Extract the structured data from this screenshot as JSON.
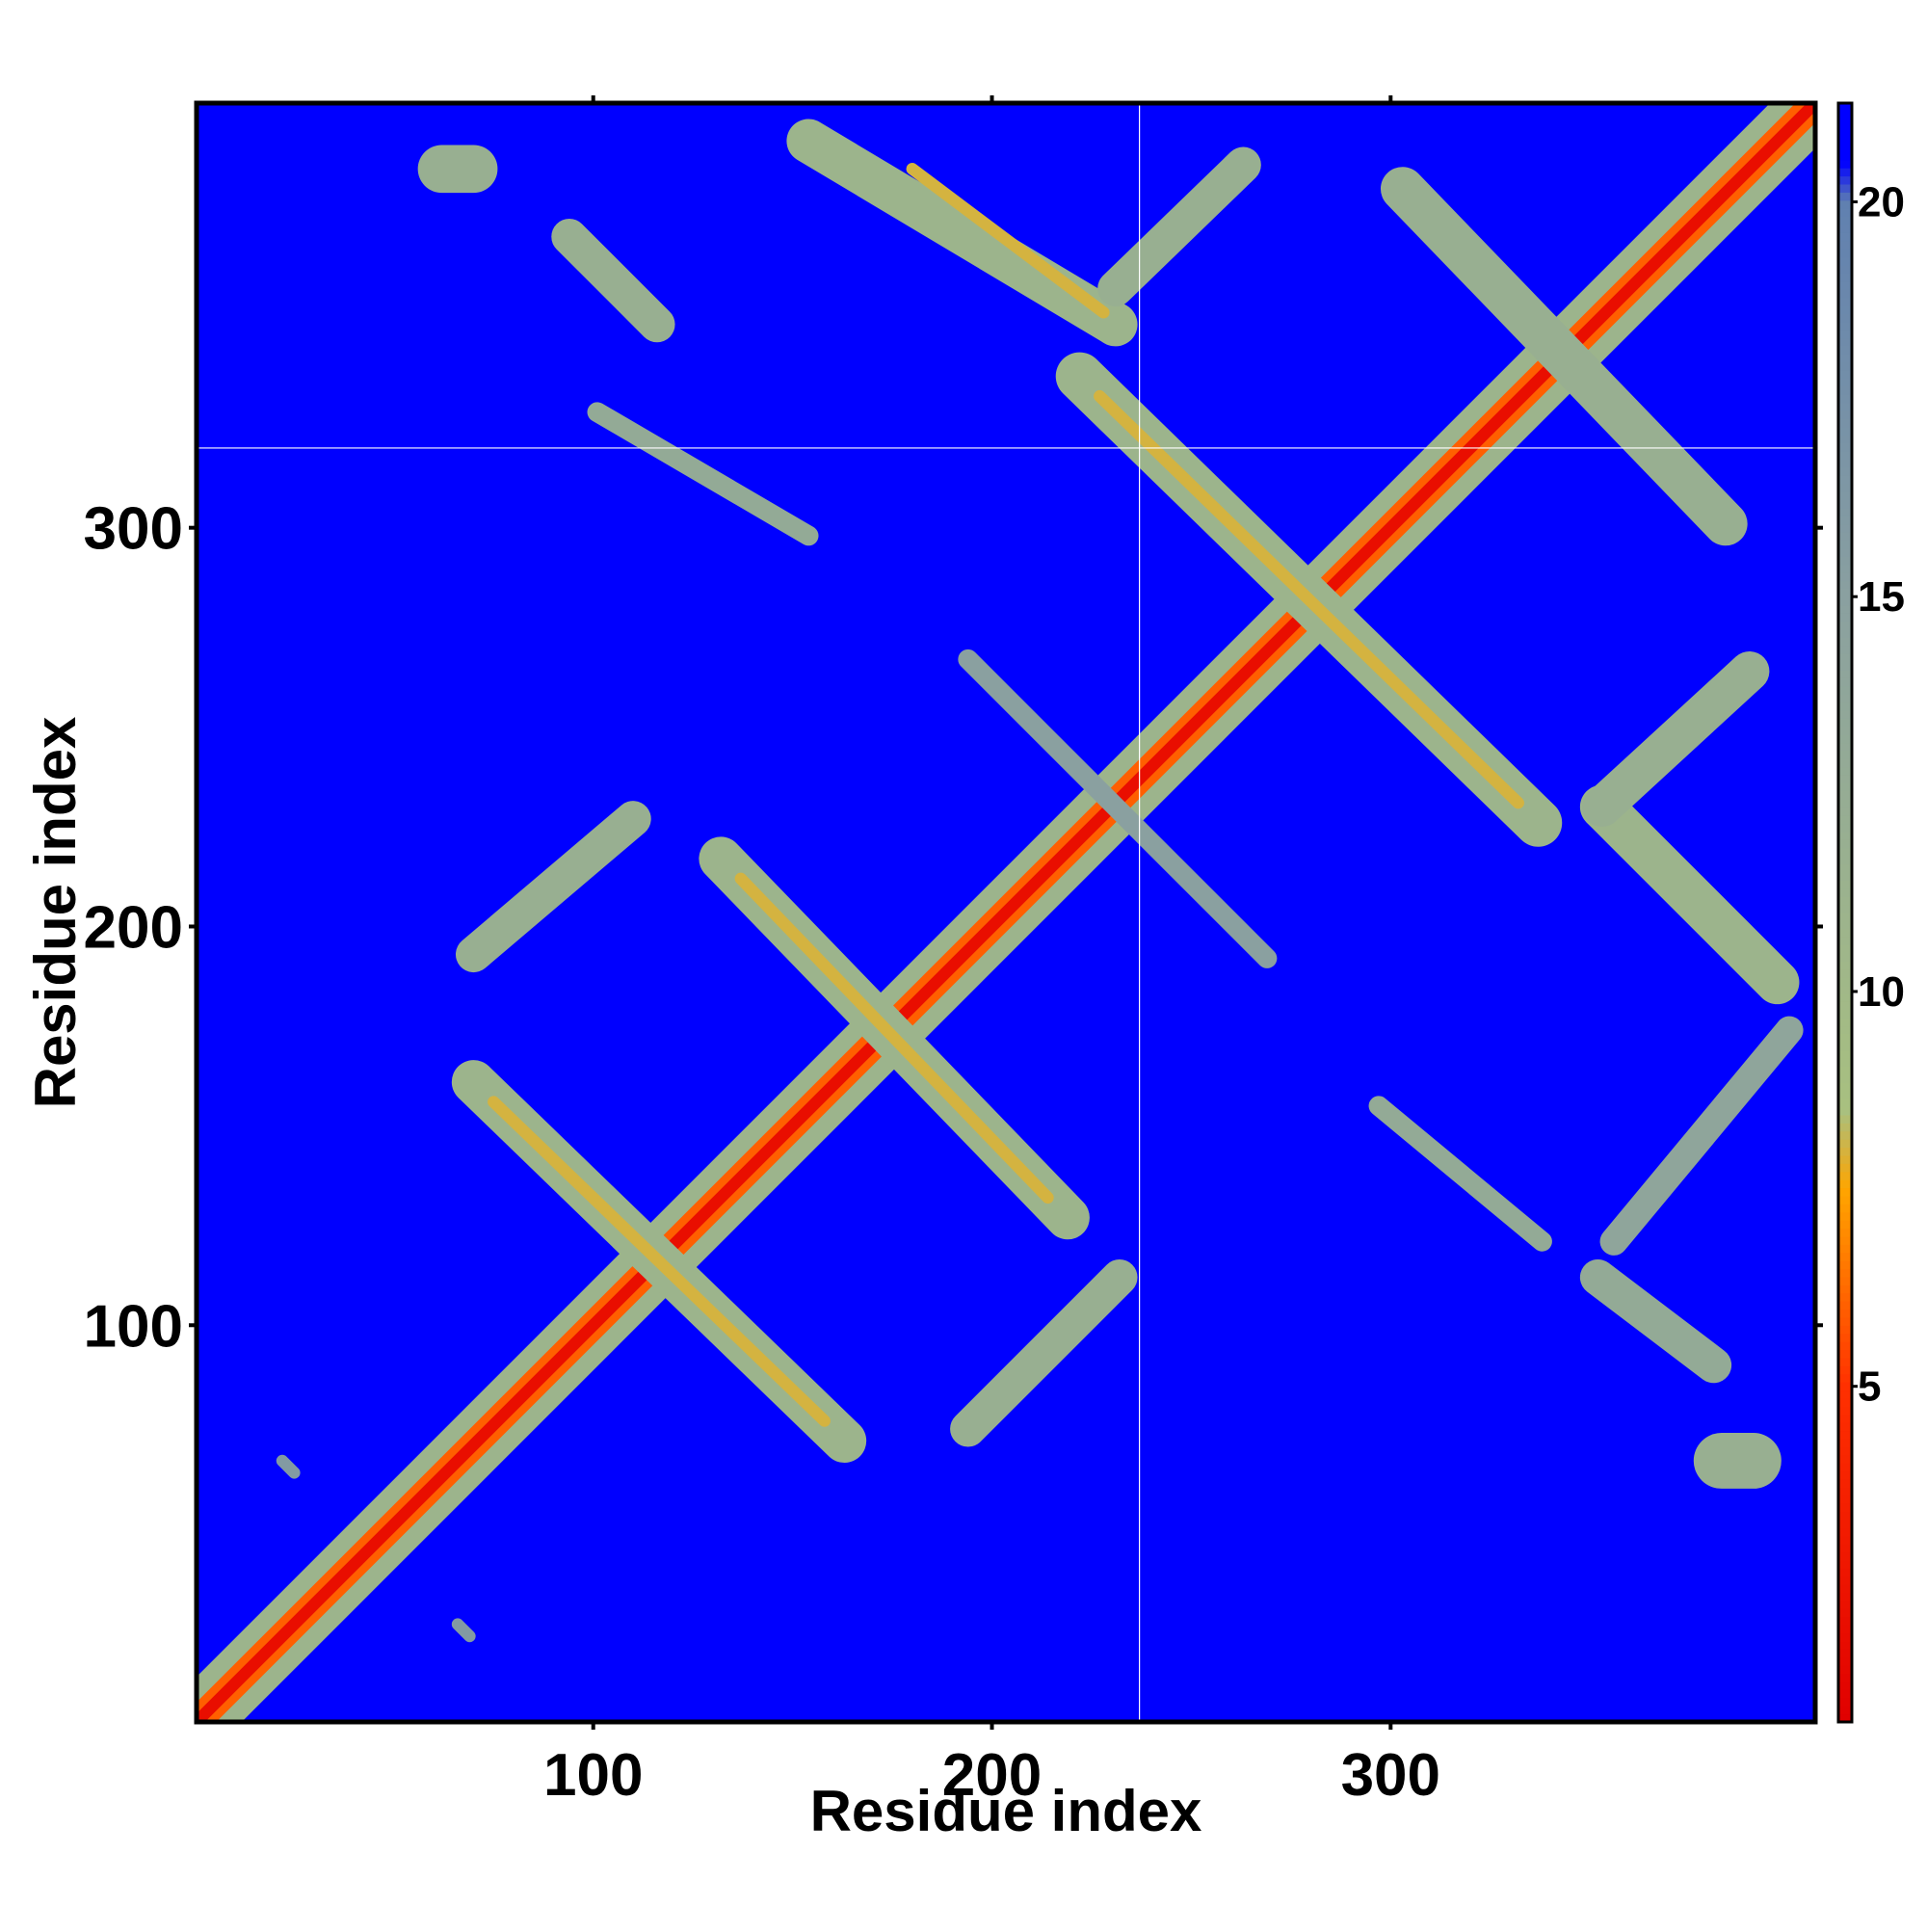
{
  "chart_data": {
    "type": "heatmap",
    "xlabel": "Residue index",
    "ylabel": "Residue index",
    "xlim": [
      0.5,
      406.5
    ],
    "ylim": [
      0.5,
      406.5
    ],
    "xticks": [
      100,
      200,
      300
    ],
    "yticks": [
      100,
      200,
      300
    ],
    "background": 21,
    "colorbar": {
      "lim": [
        0.75,
        21.25
      ],
      "ticks": [
        5,
        10,
        15,
        20
      ]
    },
    "colorscale": [
      [
        0.75,
        "#e00000"
      ],
      [
        5,
        "#ff3000"
      ],
      [
        7.5,
        "#ffa500"
      ],
      [
        8.5,
        "#a8c080"
      ],
      [
        15,
        "#8aa0a0"
      ],
      [
        20,
        "#6080b0"
      ],
      [
        20.5,
        "#0000ff"
      ],
      [
        21.25,
        "#0000ff"
      ]
    ],
    "crosshair": {
      "x": 237,
      "y": 320
    },
    "bands": [
      {
        "x": [
          1,
          406
        ],
        "y": [
          1,
          406
        ],
        "width": 16,
        "value": 11
      },
      {
        "x": [
          1,
          406
        ],
        "y": [
          1,
          406
        ],
        "width": 7,
        "value": 6
      },
      {
        "x": [
          1,
          406
        ],
        "y": [
          1,
          406
        ],
        "width": 3,
        "value": 2
      },
      {
        "x": [
          70,
          163
        ],
        "y": [
          161,
          71
        ],
        "width": 11,
        "value": 11
      },
      {
        "x": [
          75,
          158
        ],
        "y": [
          156,
          76
        ],
        "width": 3,
        "value": 8
      },
      {
        "x": [
          132,
          219
        ],
        "y": [
          217,
          127
        ],
        "width": 11,
        "value": 11
      },
      {
        "x": [
          137,
          214
        ],
        "y": [
          212,
          132
        ],
        "width": 3,
        "value": 8
      },
      {
        "x": [
          222,
          337
        ],
        "y": [
          338,
          226
        ],
        "width": 12,
        "value": 11
      },
      {
        "x": [
          227,
          332
        ],
        "y": [
          333,
          231
        ],
        "width": 3,
        "value": 8
      },
      {
        "x": [
          154,
          231
        ],
        "y": [
          397,
          351
        ],
        "width": 11,
        "value": 11
      },
      {
        "x": [
          180,
          228
        ],
        "y": [
          390,
          354
        ],
        "width": 3,
        "value": 8
      },
      {
        "x": [
          231,
          263
        ],
        "y": [
          360,
          391
        ],
        "width": 9,
        "value": 12
      },
      {
        "x": [
          94,
          116
        ],
        "y": [
          373,
          351
        ],
        "width": 9,
        "value": 12
      },
      {
        "x": [
          101,
          154
        ],
        "y": [
          329,
          298
        ],
        "width": 5,
        "value": 13
      },
      {
        "x": [
          62,
          70
        ],
        "y": [
          390,
          390
        ],
        "width": 12,
        "value": 12
      },
      {
        "x": [
          303,
          384
        ],
        "y": [
          385,
          301
        ],
        "width": 11,
        "value": 12
      },
      {
        "x": [
          353,
          397
        ],
        "y": [
          230,
          186
        ],
        "width": 11,
        "value": 11
      },
      {
        "x": [
          353,
          390
        ],
        "y": [
          230,
          264
        ],
        "width": 10,
        "value": 12
      },
      {
        "x": [
          400,
          356
        ],
        "y": [
          174,
          121
        ],
        "width": 7,
        "value": 14
      },
      {
        "x": [
          352,
          381
        ],
        "y": [
          112,
          90
        ],
        "width": 9,
        "value": 13
      },
      {
        "x": [
          297,
          338
        ],
        "y": [
          155,
          121
        ],
        "width": 5,
        "value": 13
      },
      {
        "x": [
          383,
          391
        ],
        "y": [
          66,
          66
        ],
        "width": 14,
        "value": 12
      },
      {
        "x": [
          194,
          232
        ],
        "y": [
          74,
          112
        ],
        "width": 9,
        "value": 12
      },
      {
        "x": [
          70,
          110
        ],
        "y": [
          193,
          227
        ],
        "width": 9,
        "value": 12
      },
      {
        "x": [
          194,
          269
        ],
        "y": [
          267,
          192
        ],
        "width": 5,
        "value": 15
      },
      {
        "x": [
          22,
          25
        ],
        "y": [
          66,
          63
        ],
        "width": 3,
        "value": 16
      },
      {
        "x": [
          66,
          69
        ],
        "y": [
          25,
          22
        ],
        "width": 3,
        "value": 16
      }
    ]
  }
}
